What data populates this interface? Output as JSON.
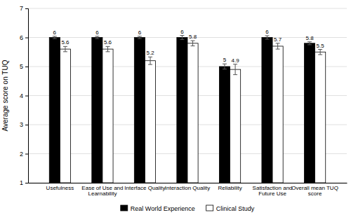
{
  "chart_data": {
    "type": "bar",
    "categories": [
      "Usefulness",
      "Ease of Use and\nLearnability",
      "Interface Quality",
      "Interaction Quality",
      "Reliability",
      "Satisfaction and\nFuture Use",
      "Overall mean TUQ\nscore"
    ],
    "series": [
      {
        "name": "Real World Experience",
        "color": "#000000",
        "values": [
          6,
          6,
          6,
          6,
          5,
          6,
          5.8
        ],
        "errors": [
          0.04,
          0.04,
          0.04,
          0.07,
          0.09,
          0.06,
          0.05
        ]
      },
      {
        "name": "Clinical Study",
        "color": "#ffffff",
        "values": [
          5.6,
          5.6,
          5.2,
          5.8,
          4.9,
          5.7,
          5.5
        ],
        "errors": [
          0.09,
          0.09,
          0.13,
          0.09,
          0.18,
          0.1,
          0.09
        ]
      }
    ],
    "y_label": "Average score on TUQ",
    "ylim": [
      1,
      7
    ],
    "yticks": [
      1,
      2,
      3,
      4,
      5,
      6,
      7
    ],
    "grid": true,
    "legend": "bottom",
    "data_labels": true
  }
}
